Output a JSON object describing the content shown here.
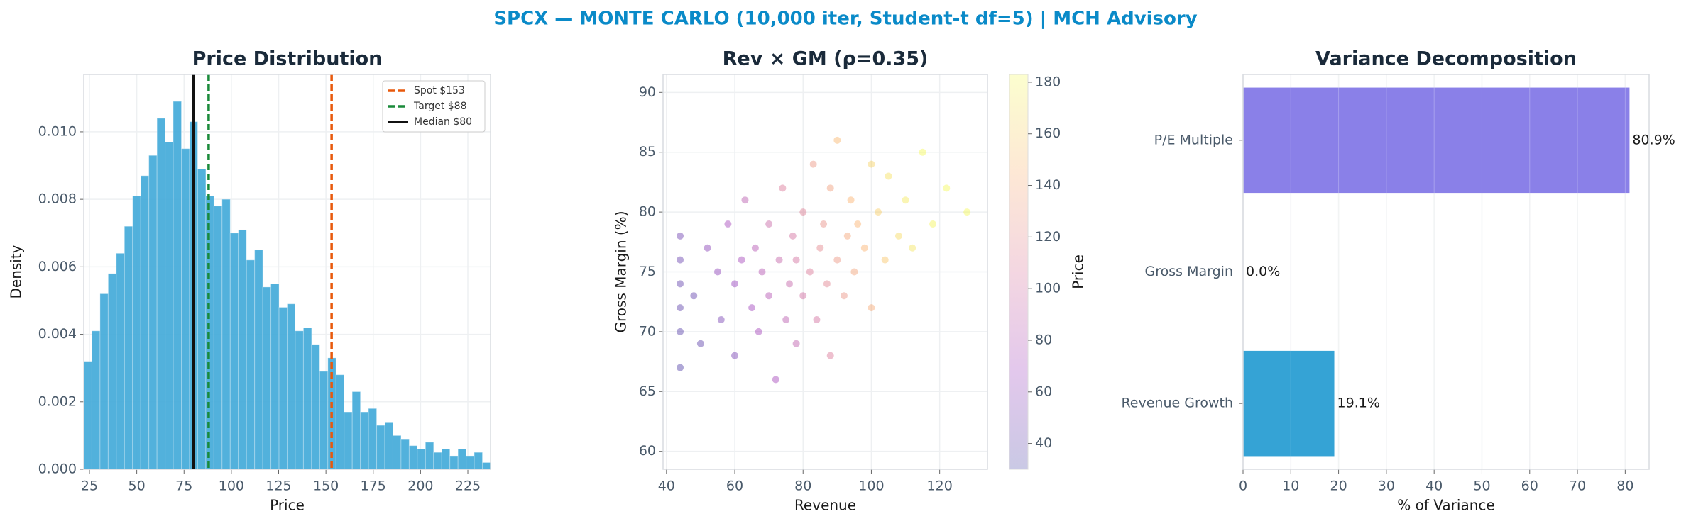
{
  "title": "SPCX — MONTE CARLO (10,000 iter, Student-t df=5) | MCH Advisory",
  "chart_data": [
    {
      "type": "histogram",
      "title": "Price Distribution",
      "xlabel": "Price",
      "ylabel": "Density",
      "bins": [
        22.0,
        26.3,
        30.6,
        34.9,
        39.2,
        43.5,
        47.8,
        52.1,
        56.4,
        60.7,
        65.0,
        69.3,
        73.6,
        77.9,
        82.2,
        86.5,
        90.8,
        95.1,
        99.4,
        103.7,
        108.0,
        112.3,
        116.6,
        120.9,
        125.2,
        129.5,
        133.8,
        138.1,
        142.4,
        146.7,
        151.0,
        155.3,
        159.6,
        163.9,
        168.2,
        172.5,
        176.8,
        181.1,
        185.4,
        189.7,
        194.0,
        198.3,
        202.6,
        206.9,
        211.2,
        215.5,
        219.8,
        224.1,
        228.4,
        232.7,
        237.0
      ],
      "values": [
        0.0032,
        0.0041,
        0.0052,
        0.0058,
        0.0064,
        0.0072,
        0.0081,
        0.0087,
        0.0093,
        0.0104,
        0.0097,
        0.0109,
        0.0095,
        0.0103,
        0.0089,
        0.0081,
        0.0078,
        0.008,
        0.007,
        0.0071,
        0.0062,
        0.0065,
        0.0054,
        0.0055,
        0.0048,
        0.0049,
        0.0041,
        0.0042,
        0.0037,
        0.0029,
        0.0033,
        0.0028,
        0.0017,
        0.0023,
        0.0017,
        0.0018,
        0.0013,
        0.0014,
        0.001,
        0.0009,
        0.0007,
        0.0006,
        0.0008,
        0.0005,
        0.0006,
        0.0004,
        0.0006,
        0.0004,
        0.0005,
        0.0002
      ],
      "color": "#3fa9d8",
      "vlines": [
        {
          "name": "Spot $153",
          "value": 153,
          "color": "#e8590c",
          "style": "dashed"
        },
        {
          "name": "Target $88",
          "value": 88,
          "color": "#1a8a3a",
          "style": "dashed"
        },
        {
          "name": "Median $80",
          "value": 80,
          "color": "#111111",
          "style": "solid"
        }
      ],
      "xlim": [
        22,
        237
      ],
      "xticks": [
        25,
        50,
        75,
        100,
        125,
        150,
        175,
        200,
        225
      ],
      "ylim": [
        0,
        0.0117
      ],
      "yticks": [
        {
          "value": 0,
          "label": "0.000"
        },
        {
          "value": 0.002,
          "label": "0.002"
        },
        {
          "value": 0.004,
          "label": "0.004"
        },
        {
          "value": 0.006,
          "label": "0.006"
        },
        {
          "value": 0.008,
          "label": "0.008"
        },
        {
          "value": 0.01,
          "label": "0.010"
        }
      ],
      "grid": true,
      "legend": "upper right"
    },
    {
      "type": "scatter",
      "title": "Rev × GM (ρ=0.35)",
      "xlabel": "Revenue",
      "ylabel": "Gross Margin (%)",
      "x": [
        44,
        44,
        44,
        44,
        44,
        44,
        48,
        50,
        52,
        55,
        56,
        58,
        60,
        60,
        62,
        63,
        65,
        66,
        67,
        68,
        70,
        70,
        72,
        73,
        74,
        75,
        76,
        77,
        78,
        78,
        80,
        80,
        82,
        83,
        84,
        85,
        86,
        87,
        88,
        88,
        90,
        90,
        92,
        93,
        94,
        95,
        96,
        98,
        100,
        100,
        102,
        104,
        105,
        108,
        110,
        112,
        115,
        118,
        122,
        128
      ],
      "y": [
        67,
        70,
        72,
        74,
        76,
        78,
        73,
        69,
        77,
        75,
        71,
        79,
        74,
        68,
        76,
        81,
        72,
        77,
        70,
        75,
        73,
        79,
        66,
        76,
        82,
        71,
        74,
        78,
        69,
        76,
        80,
        73,
        75,
        84,
        71,
        77,
        79,
        74,
        82,
        68,
        76,
        86,
        73,
        78,
        81,
        75,
        79,
        77,
        84,
        72,
        80,
        76,
        83,
        78,
        81,
        77,
        85,
        79,
        82,
        80
      ],
      "c": [
        35,
        38,
        40,
        42,
        45,
        48,
        42,
        40,
        58,
        60,
        52,
        72,
        65,
        52,
        72,
        85,
        70,
        82,
        72,
        82,
        82,
        95,
        72,
        92,
        108,
        85,
        92,
        102,
        88,
        102,
        112,
        100,
        108,
        128,
        102,
        118,
        124,
        116,
        134,
        108,
        128,
        148,
        126,
        138,
        146,
        136,
        146,
        146,
        162,
        140,
        160,
        156,
        170,
        166,
        174,
        172,
        182,
        180,
        182,
        182
      ],
      "colormap": "plasma",
      "xlim": [
        39,
        134
      ],
      "xticks": [
        40,
        60,
        80,
        100,
        120
      ],
      "ylim": [
        58.5,
        91.5
      ],
      "yticks": [
        60,
        65,
        70,
        75,
        80,
        85,
        90
      ],
      "clabel": "Price",
      "clim": [
        30,
        183
      ],
      "cticks": [
        40,
        60,
        80,
        100,
        120,
        140,
        160,
        180
      ],
      "grid": true
    },
    {
      "type": "bar",
      "orientation": "horizontal",
      "title": "Variance Decomposition",
      "xlabel": "% of Variance",
      "categories": [
        "Revenue Growth",
        "Gross Margin",
        "P/E Multiple"
      ],
      "values": [
        19.1,
        0.0,
        80.9
      ],
      "value_labels": [
        "19.1%",
        "0.0%",
        "80.9%"
      ],
      "colors": [
        "#35a3d5",
        "#35a3d5",
        "#8a80e8"
      ],
      "xlim": [
        0,
        85
      ],
      "xticks": [
        0,
        10,
        20,
        30,
        40,
        50,
        60,
        70,
        80
      ],
      "grid": true
    }
  ]
}
